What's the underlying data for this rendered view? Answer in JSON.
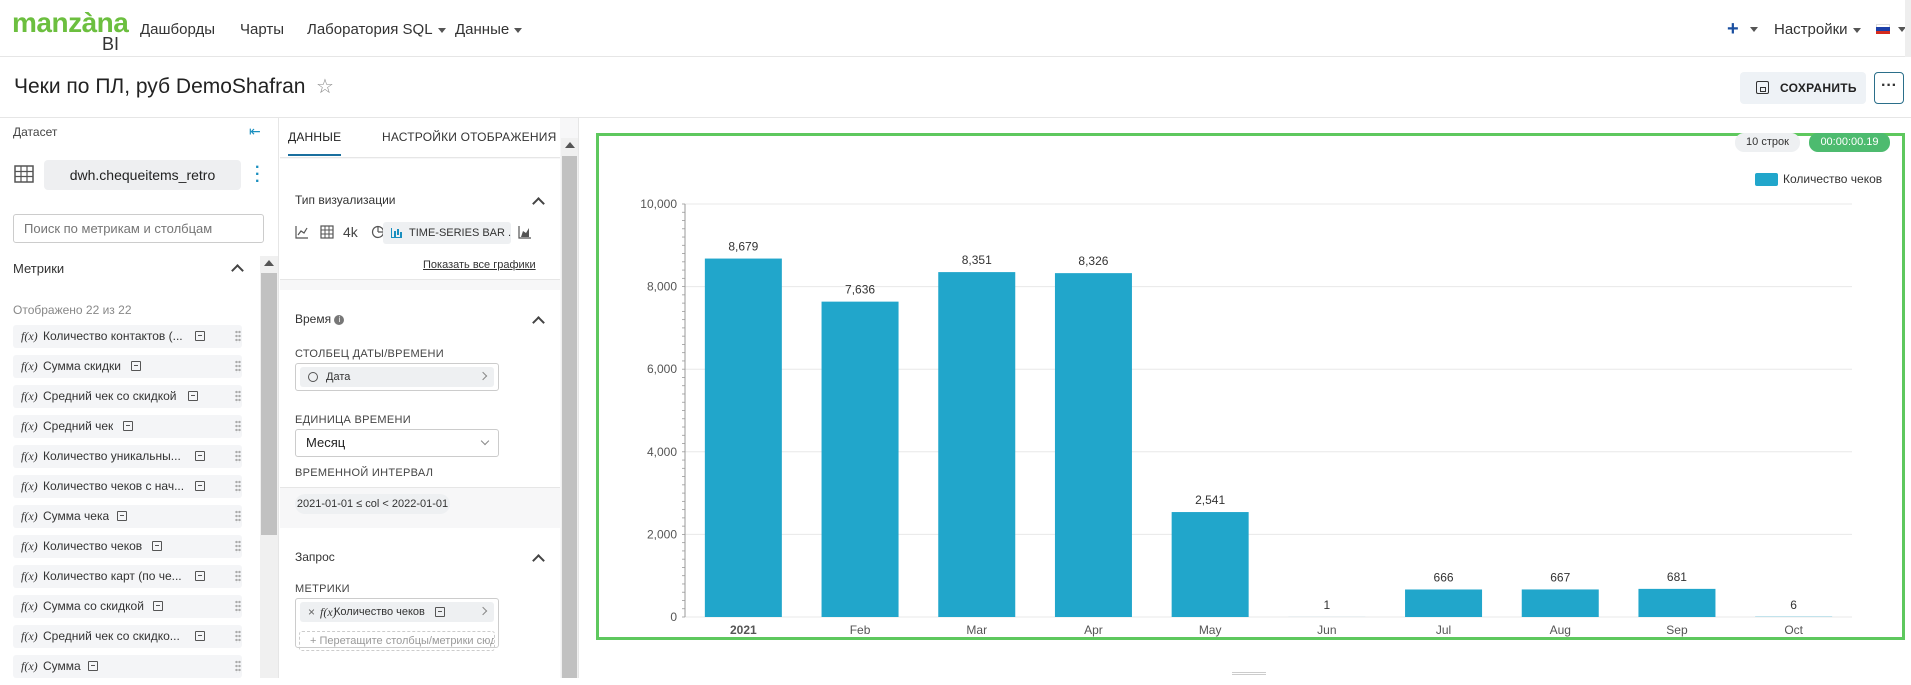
{
  "nav": {
    "logo_main": "manzàna",
    "logo_sub": "BI",
    "items": [
      {
        "label": "Дашборды",
        "has_caret": false
      },
      {
        "label": "Чарты",
        "has_caret": false
      },
      {
        "label": "Лаборатория SQL",
        "has_caret": true
      },
      {
        "label": "Данные",
        "has_caret": true
      }
    ],
    "plus_label": "+",
    "settings_label": "Настройки",
    "language_flag": "ru-flag"
  },
  "header": {
    "title": "Чеки по ПЛ, руб DemoShafran",
    "save_label": "СОХРАНИТЬ",
    "more_label": "···"
  },
  "dataset_panel": {
    "label": "Датасет",
    "dataset_name": "dwh.chequeitems_retro",
    "search_placeholder": "Поиск по метрикам и столбцам",
    "metrics_label": "Метрики",
    "shown_count": "Отображено 22 из 22",
    "metrics": [
      {
        "name": "Количество контактов (..."
      },
      {
        "name": "Сумма скидки"
      },
      {
        "name": "Средний чек со скидкой"
      },
      {
        "name": "Средний чек"
      },
      {
        "name": "Количество уникальны..."
      },
      {
        "name": "Количество чеков с нач..."
      },
      {
        "name": "Сумма чека"
      },
      {
        "name": "Количество чеков"
      },
      {
        "name": "Количество карт (по че..."
      },
      {
        "name": "Сумма со скидкой"
      },
      {
        "name": "Средний чек со скидко..."
      },
      {
        "name": "Сумма"
      }
    ]
  },
  "config_panel": {
    "tab_data": "ДАННЫЕ",
    "tab_display": "НАСТРОЙКИ ОТОБРАЖЕНИЯ",
    "viz_type_label": "Тип визуализации",
    "viz_active": "TIME-SERIES BAR ...",
    "viz_4k": "4k",
    "show_all_charts": "Показать все графики",
    "time_section": "Время",
    "date_column_label": "СТОЛБЕЦ ДАТЫ/ВРЕМЕНИ",
    "date_column_value": "Дата",
    "time_unit_label": "ЕДИНИЦА ВРЕМЕНИ",
    "time_unit_value": "Месяц",
    "time_range_label": "ВРЕМЕННОЙ ИНТЕРВАЛ",
    "time_range_value": "2021-01-01 ≤ col < 2022-01-01",
    "query_section": "Запрос",
    "metrics_label": "МЕТРИКИ",
    "metric_value": "Количество чеков",
    "drop_placeholder": "+ Перетащите столбцы/метрики сюда"
  },
  "chart_meta": {
    "rows_badge": "10 строк",
    "time_badge": "00:00:00.19"
  },
  "chart_data": {
    "type": "bar",
    "categories": [
      "2021",
      "Feb",
      "Mar",
      "Apr",
      "May",
      "Jun",
      "Jul",
      "Aug",
      "Sep",
      "Oct"
    ],
    "series": [
      {
        "name": "Количество чеков",
        "values": [
          8679,
          7636,
          8351,
          8326,
          2541,
          1,
          666,
          667,
          681,
          6
        ],
        "color": "#21a6cb"
      }
    ],
    "data_labels": [
      "8,679",
      "7,636",
      "8,351",
      "8,326",
      "2,541",
      "1",
      "666",
      "667",
      "681",
      "6"
    ],
    "y_ticks": [
      "0",
      "2,000",
      "4,000",
      "6,000",
      "8,000",
      "10,000"
    ],
    "ylim": [
      0,
      10000
    ],
    "grid": true,
    "legend_position": "top-right"
  }
}
